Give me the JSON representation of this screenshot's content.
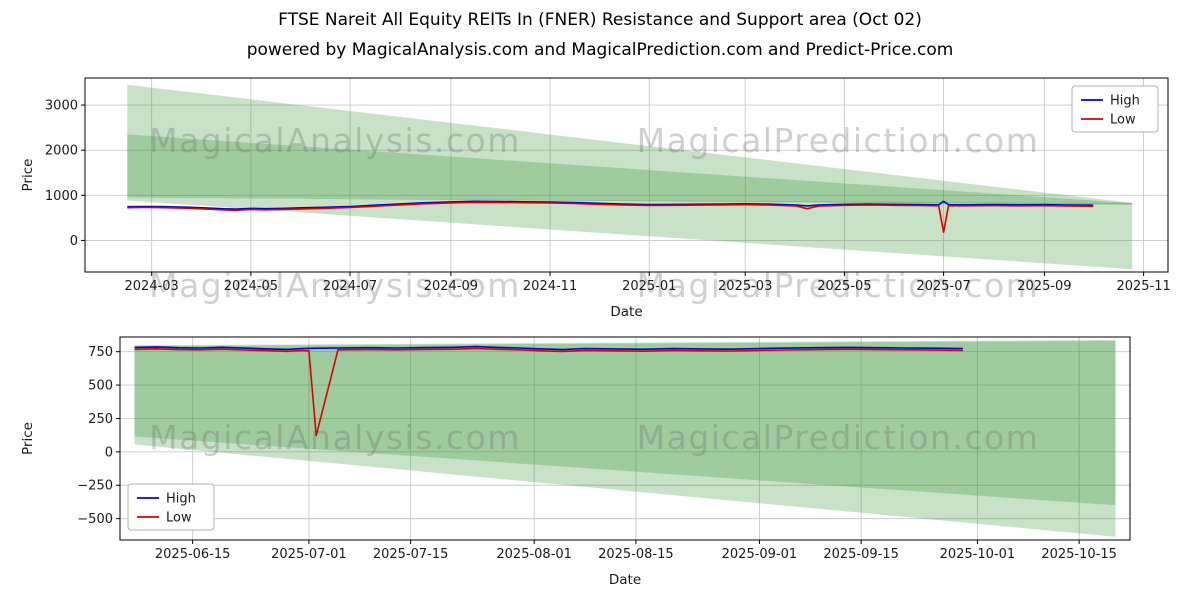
{
  "figure": {
    "title": "FTSE Nareit All Equity REITs In (FNER) Resistance and Support area (Oct 02)",
    "subtitle": "powered by MagicalAnalysis.com and MagicalPrediction.com and Predict-Price.com"
  },
  "watermarks": [
    "MagicalAnalysis.com",
    "MagicalPrediction.com"
  ],
  "colors": {
    "high": "#0000dd",
    "low": "#dd0000",
    "band": "#228b22",
    "grid": "#c8c8c8",
    "spine": "#000000",
    "text": "#1a1a1a",
    "watermark": "rgba(110,110,110,0.32)"
  },
  "chart_data": [
    {
      "type": "line",
      "title": "",
      "xlabel": "Date",
      "ylabel": "Price",
      "grid": true,
      "xlim": [
        "2024-01-20",
        "2025-11-16"
      ],
      "ylim": [
        -700,
        3600
      ],
      "yticks": [
        {
          "v": 0,
          "label": "0"
        },
        {
          "v": 1000,
          "label": "1000"
        },
        {
          "v": 2000,
          "label": "2000"
        },
        {
          "v": 3000,
          "label": "3000"
        }
      ],
      "xticks": [
        {
          "v": "2024-03-01",
          "label": "2024-03"
        },
        {
          "v": "2024-05-01",
          "label": "2024-05"
        },
        {
          "v": "2024-07-01",
          "label": "2024-07"
        },
        {
          "v": "2024-09-01",
          "label": "2024-09"
        },
        {
          "v": "2024-11-01",
          "label": "2024-11"
        },
        {
          "v": "2025-01-01",
          "label": "2025-01"
        },
        {
          "v": "2025-03-01",
          "label": "2025-03"
        },
        {
          "v": "2025-05-01",
          "label": "2025-05"
        },
        {
          "v": "2025-07-01",
          "label": "2025-07"
        },
        {
          "v": "2025-09-01",
          "label": "2025-09"
        },
        {
          "v": "2025-11-01",
          "label": "2025-11"
        }
      ],
      "legend": {
        "position": "upper-right",
        "entries": [
          {
            "label": "High",
            "color": "high"
          },
          {
            "label": "Low",
            "color": "low"
          }
        ]
      },
      "bands": [
        {
          "name": "resistance-fan-outer",
          "points": [
            [
              "2024-02-15",
              3450
            ],
            [
              "2025-10-25",
              832
            ],
            [
              "2025-10-25",
              792
            ],
            [
              "2024-02-15",
              952
            ]
          ]
        },
        {
          "name": "resistance-fan-inner",
          "points": [
            [
              "2024-02-15",
              2350
            ],
            [
              "2025-10-25",
              827
            ],
            [
              "2025-10-25",
              797
            ],
            [
              "2024-02-15",
              946
            ]
          ]
        },
        {
          "name": "support-wedge",
          "points": [
            [
              "2024-02-15",
              946
            ],
            [
              "2025-10-25",
              828
            ],
            [
              "2025-10-25",
              -640
            ],
            [
              "2024-02-15",
              884
            ]
          ]
        }
      ],
      "series": [
        {
          "name": "High",
          "color": "high",
          "points": [
            [
              "2024-02-15",
              748
            ],
            [
              "2024-02-25",
              752
            ],
            [
              "2024-03-05",
              750
            ],
            [
              "2024-03-15",
              744
            ],
            [
              "2024-03-25",
              735
            ],
            [
              "2024-04-05",
              718
            ],
            [
              "2024-04-15",
              700
            ],
            [
              "2024-04-22",
              695
            ],
            [
              "2024-05-01",
              710
            ],
            [
              "2024-05-10",
              702
            ],
            [
              "2024-05-20",
              710
            ],
            [
              "2024-06-01",
              722
            ],
            [
              "2024-06-15",
              734
            ],
            [
              "2024-07-01",
              752
            ],
            [
              "2024-07-15",
              778
            ],
            [
              "2024-08-01",
              810
            ],
            [
              "2024-08-15",
              833
            ],
            [
              "2024-09-01",
              853
            ],
            [
              "2024-09-15",
              866
            ],
            [
              "2024-10-01",
              862
            ],
            [
              "2024-10-15",
              856
            ],
            [
              "2024-11-01",
              850
            ],
            [
              "2024-11-15",
              840
            ],
            [
              "2024-12-01",
              822
            ],
            [
              "2024-12-15",
              806
            ],
            [
              "2025-01-01",
              796
            ],
            [
              "2025-01-15",
              799
            ],
            [
              "2025-02-01",
              803
            ],
            [
              "2025-02-15",
              807
            ],
            [
              "2025-03-01",
              812
            ],
            [
              "2025-03-15",
              806
            ],
            [
              "2025-04-01",
              786
            ],
            [
              "2025-04-08",
              764
            ],
            [
              "2025-04-15",
              783
            ],
            [
              "2025-05-01",
              800
            ],
            [
              "2025-05-15",
              806
            ],
            [
              "2025-06-01",
              800
            ],
            [
              "2025-06-15",
              795
            ],
            [
              "2025-06-28",
              790
            ],
            [
              "2025-07-01",
              868
            ],
            [
              "2025-07-04",
              792
            ],
            [
              "2025-07-15",
              790
            ],
            [
              "2025-08-01",
              795
            ],
            [
              "2025-08-15",
              790
            ],
            [
              "2025-09-01",
              792
            ],
            [
              "2025-09-15",
              786
            ],
            [
              "2025-10-01",
              780
            ]
          ]
        },
        {
          "name": "Low",
          "color": "low",
          "points": [
            [
              "2024-02-15",
              726
            ],
            [
              "2024-02-25",
              730
            ],
            [
              "2024-03-05",
              727
            ],
            [
              "2024-03-15",
              720
            ],
            [
              "2024-03-25",
              711
            ],
            [
              "2024-04-05",
              693
            ],
            [
              "2024-04-15",
              675
            ],
            [
              "2024-04-22",
              668
            ],
            [
              "2024-05-01",
              686
            ],
            [
              "2024-05-10",
              678
            ],
            [
              "2024-05-20",
              687
            ],
            [
              "2024-06-01",
              699
            ],
            [
              "2024-06-15",
              711
            ],
            [
              "2024-07-01",
              729
            ],
            [
              "2024-07-15",
              756
            ],
            [
              "2024-08-01",
              788
            ],
            [
              "2024-08-15",
              812
            ],
            [
              "2024-09-01",
              832
            ],
            [
              "2024-09-15",
              846
            ],
            [
              "2024-10-01",
              842
            ],
            [
              "2024-10-15",
              836
            ],
            [
              "2024-11-01",
              829
            ],
            [
              "2024-11-15",
              818
            ],
            [
              "2024-12-01",
              801
            ],
            [
              "2024-12-15",
              786
            ],
            [
              "2025-01-01",
              776
            ],
            [
              "2025-01-15",
              779
            ],
            [
              "2025-02-01",
              783
            ],
            [
              "2025-02-15",
              787
            ],
            [
              "2025-03-01",
              791
            ],
            [
              "2025-03-15",
              785
            ],
            [
              "2025-04-01",
              764
            ],
            [
              "2025-04-08",
              702
            ],
            [
              "2025-04-15",
              761
            ],
            [
              "2025-05-01",
              778
            ],
            [
              "2025-05-15",
              784
            ],
            [
              "2025-06-01",
              778
            ],
            [
              "2025-06-15",
              773
            ],
            [
              "2025-06-28",
              768
            ],
            [
              "2025-07-01",
              182
            ],
            [
              "2025-07-04",
              769
            ],
            [
              "2025-07-15",
              768
            ],
            [
              "2025-08-01",
              772
            ],
            [
              "2025-08-15",
              768
            ],
            [
              "2025-09-01",
              770
            ],
            [
              "2025-09-15",
              764
            ],
            [
              "2025-10-01",
              759
            ]
          ]
        }
      ]
    },
    {
      "type": "line",
      "title": "",
      "xlabel": "Date",
      "ylabel": "Price",
      "grid": true,
      "xlim": [
        "2025-06-05",
        "2025-10-22"
      ],
      "ylim": [
        -660,
        860
      ],
      "yticks": [
        {
          "v": 750,
          "label": "750"
        },
        {
          "v": 500,
          "label": "500"
        },
        {
          "v": 250,
          "label": "250"
        },
        {
          "v": 0,
          "label": "0"
        },
        {
          "v": -250,
          "label": "−250"
        },
        {
          "v": -500,
          "label": "−500"
        }
      ],
      "xticks": [
        {
          "v": "2025-06-15",
          "label": "2025-06-15"
        },
        {
          "v": "2025-07-01",
          "label": "2025-07-01"
        },
        {
          "v": "2025-07-15",
          "label": "2025-07-15"
        },
        {
          "v": "2025-08-01",
          "label": "2025-08-01"
        },
        {
          "v": "2025-08-15",
          "label": "2025-08-15"
        },
        {
          "v": "2025-09-01",
          "label": "2025-09-01"
        },
        {
          "v": "2025-09-15",
          "label": "2025-09-15"
        },
        {
          "v": "2025-10-01",
          "label": "2025-10-01"
        },
        {
          "v": "2025-10-15",
          "label": "2025-10-15"
        }
      ],
      "legend": {
        "position": "lower-left",
        "entries": [
          {
            "label": "High",
            "color": "high"
          },
          {
            "label": "Low",
            "color": "low"
          }
        ]
      },
      "bands": [
        {
          "name": "support-band-outer",
          "points": [
            [
              "2025-06-07",
              798
            ],
            [
              "2025-10-20",
              838
            ],
            [
              "2025-10-20",
              -635
            ],
            [
              "2025-06-07",
              55
            ]
          ]
        },
        {
          "name": "support-band-inner",
          "points": [
            [
              "2025-06-07",
              792
            ],
            [
              "2025-10-20",
              830
            ],
            [
              "2025-10-20",
              -400
            ],
            [
              "2025-06-07",
              115
            ]
          ]
        }
      ],
      "series": [
        {
          "name": "High",
          "color": "high",
          "points": [
            [
              "2025-06-07",
              782
            ],
            [
              "2025-06-10",
              786
            ],
            [
              "2025-06-13",
              780
            ],
            [
              "2025-06-16",
              778
            ],
            [
              "2025-06-19",
              783
            ],
            [
              "2025-06-22",
              777
            ],
            [
              "2025-06-25",
              772
            ],
            [
              "2025-06-28",
              767
            ],
            [
              "2025-06-30",
              773
            ],
            [
              "2025-07-02",
              776
            ],
            [
              "2025-07-05",
              778
            ],
            [
              "2025-07-09",
              780
            ],
            [
              "2025-07-13",
              778
            ],
            [
              "2025-07-17",
              781
            ],
            [
              "2025-07-21",
              783
            ],
            [
              "2025-07-24",
              788
            ],
            [
              "2025-07-27",
              782
            ],
            [
              "2025-07-30",
              778
            ],
            [
              "2025-08-02",
              771
            ],
            [
              "2025-08-05",
              766
            ],
            [
              "2025-08-08",
              774
            ],
            [
              "2025-08-12",
              771
            ],
            [
              "2025-08-16",
              768
            ],
            [
              "2025-08-20",
              773
            ],
            [
              "2025-08-24",
              771
            ],
            [
              "2025-08-28",
              769
            ],
            [
              "2025-09-01",
              774
            ],
            [
              "2025-09-05",
              777
            ],
            [
              "2025-09-09",
              780
            ],
            [
              "2025-09-13",
              782
            ],
            [
              "2025-09-17",
              780
            ],
            [
              "2025-09-21",
              778
            ],
            [
              "2025-09-25",
              776
            ],
            [
              "2025-09-29",
              774
            ]
          ]
        },
        {
          "name": "Low",
          "color": "low",
          "points": [
            [
              "2025-06-07",
              768
            ],
            [
              "2025-06-10",
              772
            ],
            [
              "2025-06-13",
              766
            ],
            [
              "2025-06-16",
              764
            ],
            [
              "2025-06-19",
              769
            ],
            [
              "2025-06-22",
              763
            ],
            [
              "2025-06-25",
              758
            ],
            [
              "2025-06-28",
              753
            ],
            [
              "2025-06-30",
              759
            ],
            [
              "2025-07-01",
              757
            ],
            [
              "2025-07-02",
              122
            ],
            [
              "2025-07-05",
              764
            ],
            [
              "2025-07-09",
              766
            ],
            [
              "2025-07-13",
              764
            ],
            [
              "2025-07-17",
              767
            ],
            [
              "2025-07-21",
              769
            ],
            [
              "2025-07-24",
              774
            ],
            [
              "2025-07-27",
              768
            ],
            [
              "2025-07-30",
              764
            ],
            [
              "2025-08-02",
              757
            ],
            [
              "2025-08-05",
              752
            ],
            [
              "2025-08-08",
              760
            ],
            [
              "2025-08-12",
              757
            ],
            [
              "2025-08-16",
              754
            ],
            [
              "2025-08-20",
              759
            ],
            [
              "2025-08-24",
              757
            ],
            [
              "2025-08-28",
              755
            ],
            [
              "2025-09-01",
              760
            ],
            [
              "2025-09-05",
              763
            ],
            [
              "2025-09-09",
              766
            ],
            [
              "2025-09-13",
              768
            ],
            [
              "2025-09-17",
              766
            ],
            [
              "2025-09-21",
              764
            ],
            [
              "2025-09-25",
              762
            ],
            [
              "2025-09-29",
              760
            ]
          ]
        }
      ]
    }
  ]
}
